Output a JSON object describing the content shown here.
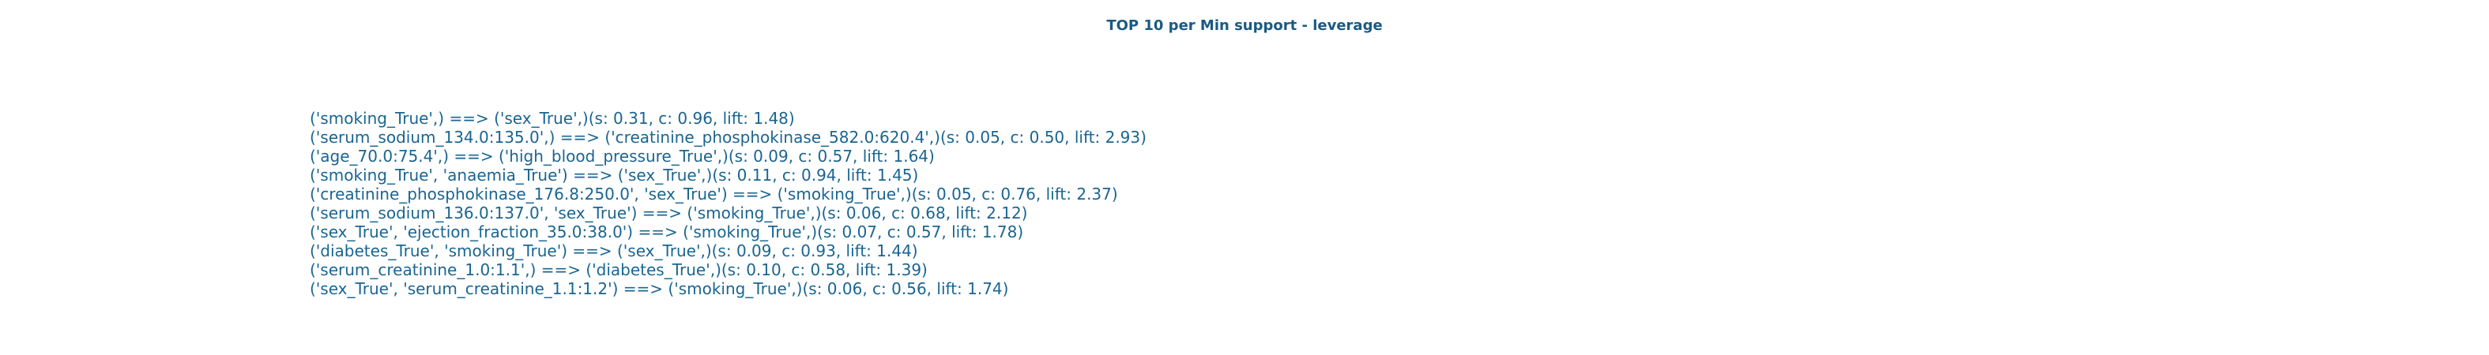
{
  "chart_data": {
    "type": "table",
    "title": "TOP 10 per Min support - leverage",
    "rows": [
      "('smoking_True',) ==> ('sex_True',)(s: 0.31, c: 0.96, lift: 1.48)",
      "('serum_sodium_134.0:135.0',) ==> ('creatinine_phosphokinase_582.0:620.4',)(s: 0.05, c: 0.50, lift: 2.93)",
      "('age_70.0:75.4',) ==> ('high_blood_pressure_True',)(s: 0.09, c: 0.57, lift: 1.64)",
      "('smoking_True', 'anaemia_True') ==> ('sex_True',)(s: 0.11, c: 0.94, lift: 1.45)",
      "('creatinine_phosphokinase_176.8:250.0', 'sex_True') ==> ('smoking_True',)(s: 0.05, c: 0.76, lift: 2.37)",
      "('serum_sodium_136.0:137.0', 'sex_True') ==> ('smoking_True',)(s: 0.06, c: 0.68, lift: 2.12)",
      "('sex_True', 'ejection_fraction_35.0:38.0') ==> ('smoking_True',)(s: 0.07, c: 0.57, lift: 1.78)",
      "('diabetes_True', 'smoking_True') ==> ('sex_True',)(s: 0.09, c: 0.93, lift: 1.44)",
      "('serum_creatinine_1.0:1.1',) ==> ('diabetes_True',)(s: 0.10, c: 0.58, lift: 1.39)",
      "('sex_True', 'serum_creatinine_1.1:1.2') ==> ('smoking_True',)(s: 0.06, c: 0.56, lift: 1.74)"
    ]
  },
  "colors": {
    "title": "#1a5a82",
    "text": "#1a6591",
    "background": "#ffffff"
  }
}
